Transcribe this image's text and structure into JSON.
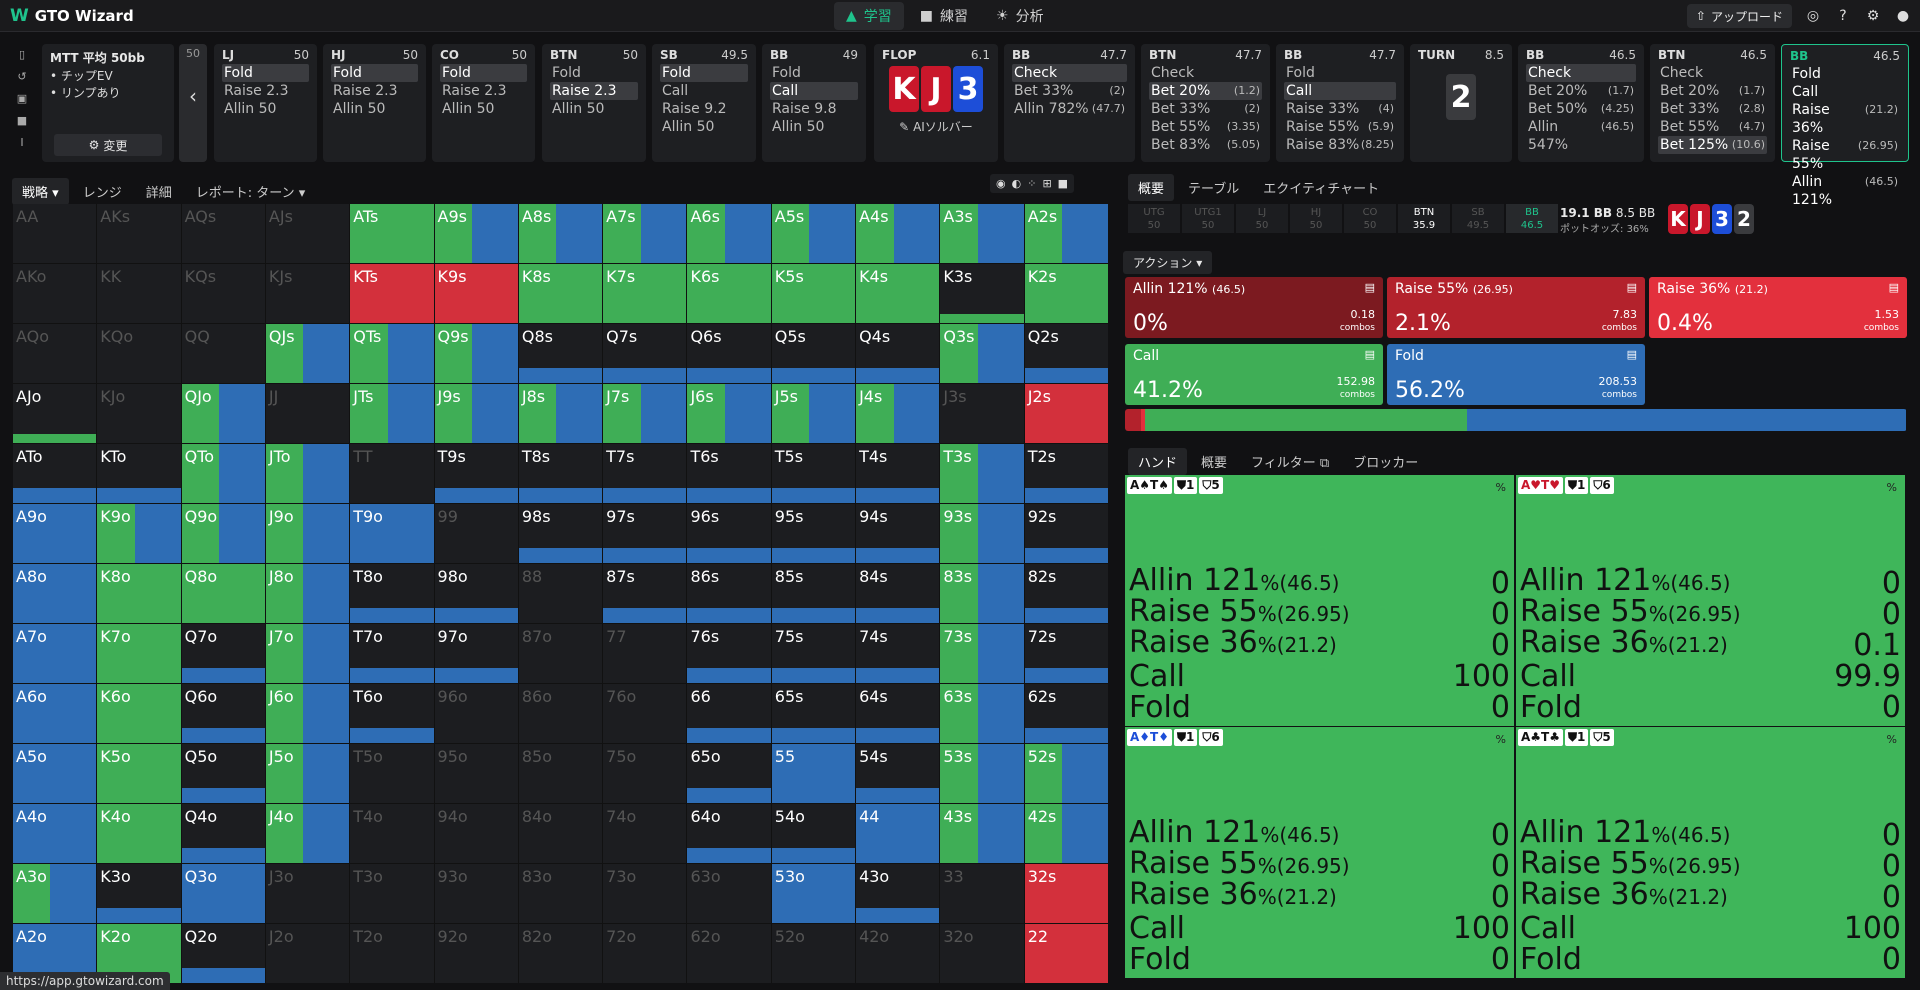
{
  "app": {
    "logo": "GTO Wizard",
    "nav": [
      "学習",
      "練習",
      "分析"
    ],
    "upgrade": "アップロード",
    "status_url": "https://app.gtowizard.com"
  },
  "tournament": {
    "title": "MTT 平均 50bb",
    "lines": [
      "• チップEV",
      "• リンプあり"
    ],
    "change": "変更",
    "back_stack": "50"
  },
  "nodes": [
    {
      "pos": "LJ",
      "stack": "50",
      "actions": [
        [
          "Fold",
          "",
          "sel"
        ],
        [
          "Raise 2.3",
          "",
          ""
        ],
        [
          "Allin 50",
          "",
          ""
        ]
      ]
    },
    {
      "pos": "HJ",
      "stack": "50",
      "actions": [
        [
          "Fold",
          "",
          "sel"
        ],
        [
          "Raise 2.3",
          "",
          ""
        ],
        [
          "Allin 50",
          "",
          ""
        ]
      ]
    },
    {
      "pos": "CO",
      "stack": "50",
      "actions": [
        [
          "Fold",
          "",
          "sel"
        ],
        [
          "Raise 2.3",
          "",
          ""
        ],
        [
          "Allin 50",
          "",
          ""
        ]
      ]
    },
    {
      "pos": "BTN",
      "stack": "50",
      "actions": [
        [
          "Fold",
          "",
          ""
        ],
        [
          "Raise 2.3",
          "",
          "sel"
        ],
        [
          "Allin 50",
          "",
          ""
        ]
      ]
    },
    {
      "pos": "SB",
      "stack": "49.5",
      "actions": [
        [
          "Fold",
          "",
          "sel"
        ],
        [
          "Call",
          "",
          ""
        ],
        [
          "Raise 9.2",
          "",
          ""
        ],
        [
          "Allin 50",
          "",
          ""
        ]
      ]
    },
    {
      "pos": "BB",
      "stack": "49",
      "actions": [
        [
          "Fold",
          "",
          ""
        ],
        [
          "Call",
          "",
          "sel"
        ],
        [
          "Raise 9.8",
          "",
          ""
        ],
        [
          "Allin 50",
          "",
          ""
        ]
      ]
    },
    {
      "pos": "BB",
      "stack": "47.7",
      "actions": [
        [
          "Check",
          "",
          "sel"
        ],
        [
          "Bet 33%",
          "(2)",
          ""
        ],
        [
          "Allin 782%",
          "(47.7)",
          ""
        ]
      ]
    },
    {
      "pos": "BTN",
      "stack": "47.7",
      "actions": [
        [
          "Check",
          "",
          ""
        ],
        [
          "Bet 20%",
          "(1.2)",
          "sel"
        ],
        [
          "Bet 33%",
          "(2)",
          ""
        ],
        [
          "Bet 55%",
          "(3.35)",
          ""
        ],
        [
          "Bet 83%",
          "(5.05)",
          ""
        ]
      ]
    },
    {
      "pos": "BB",
      "stack": "47.7",
      "actions": [
        [
          "Fold",
          "",
          ""
        ],
        [
          "Call",
          "",
          "sel"
        ],
        [
          "Raise 33%",
          "(4)",
          ""
        ],
        [
          "Raise 55%",
          "(5.9)",
          ""
        ],
        [
          "Raise 83%",
          "(8.25)",
          ""
        ]
      ]
    },
    {
      "pos": "BB",
      "stack": "46.5",
      "actions": [
        [
          "Check",
          "",
          "sel"
        ],
        [
          "Bet 20%",
          "(1.7)",
          ""
        ],
        [
          "Bet 50%",
          "(4.25)",
          ""
        ],
        [
          "Allin 547%",
          "(46.5)",
          ""
        ]
      ]
    },
    {
      "pos": "BTN",
      "stack": "46.5",
      "actions": [
        [
          "Check",
          "",
          ""
        ],
        [
          "Bet 20%",
          "(1.7)",
          ""
        ],
        [
          "Bet 33%",
          "(2.8)",
          ""
        ],
        [
          "Bet 55%",
          "(4.7)",
          ""
        ],
        [
          "Bet 125%",
          "(10.6)",
          "sel"
        ]
      ]
    },
    {
      "pos": "BB",
      "stack": "46.5",
      "actions": [
        [
          "Fold",
          "",
          "b"
        ],
        [
          "Call",
          "",
          "b"
        ],
        [
          "Raise 36%",
          "(21.2)",
          "b"
        ],
        [
          "Raise 55%",
          "(26.95)",
          "b"
        ],
        [
          "Allin 121%",
          "(46.5)",
          "b"
        ]
      ]
    }
  ],
  "flop": {
    "label": "FLOP",
    "pot": "6.1",
    "cards": [
      "K",
      "J",
      "3"
    ],
    "ai": "AIソルバー"
  },
  "turn": {
    "label": "TURN",
    "pot": "8.5",
    "card": "2"
  },
  "left_tabs": [
    "戦略",
    "レンジ",
    "詳細",
    "レポート: ターン"
  ],
  "right_tabs": [
    "概要",
    "テーブル",
    "エクイティチャート"
  ],
  "positions": [
    [
      "UTG",
      "50"
    ],
    [
      "UTG1",
      "50"
    ],
    [
      "LJ",
      "50"
    ],
    [
      "HJ",
      "50"
    ],
    [
      "CO",
      "50"
    ],
    [
      "BTN",
      "35.9"
    ],
    [
      "SB",
      "49.5"
    ],
    [
      "BB",
      "46.5"
    ]
  ],
  "pot_info": {
    "pot": "19.1 BB",
    "bet": "8.5 BB",
    "odds_label": "ポットオッズ:",
    "odds": "36%",
    "board": [
      "K",
      "J",
      "3",
      "2"
    ]
  },
  "action_label": "アクション",
  "actions": [
    {
      "name": "Allin 121%",
      "size": "(46.5)",
      "pct": "0%",
      "combos": "0.18",
      "color": "#7c1a20"
    },
    {
      "name": "Raise 55%",
      "size": "(26.95)",
      "pct": "2.1%",
      "combos": "7.83",
      "color": "#b3222c"
    },
    {
      "name": "Raise 36%",
      "size": "(21.2)",
      "pct": "0.4%",
      "combos": "1.53",
      "color": "#e3303d"
    },
    {
      "name": "Call",
      "size": "",
      "pct": "41.2%",
      "combos": "152.98",
      "color": "#3fae56"
    },
    {
      "name": "Fold",
      "size": "",
      "pct": "56.2%",
      "combos": "208.53",
      "color": "#2e6db5"
    }
  ],
  "combos_label": "combos",
  "hand_tabs": [
    "ハンド",
    "概要",
    "フィルター",
    "ブロッカー"
  ],
  "hands": [
    {
      "hand": "A♠T♠",
      "badge1": "1",
      "badge2": "5",
      "vals": [
        "0",
        "0",
        "0",
        "100",
        "0"
      ]
    },
    {
      "hand": "A♥T♥",
      "badge1": "1",
      "badge2": "6",
      "vals": [
        "0",
        "0",
        "0.1",
        "99.9",
        "0"
      ]
    },
    {
      "hand": "A♦T♦",
      "badge1": "1",
      "badge2": "6",
      "vals": [
        "0",
        "0",
        "0",
        "100",
        "0"
      ]
    },
    {
      "hand": "A♣T♣",
      "badge1": "1",
      "badge2": "5",
      "vals": [
        "0",
        "0",
        "0",
        "100",
        "0"
      ]
    }
  ],
  "hand_rows": [
    [
      "Allin 121",
      "(46.5)"
    ],
    [
      "Raise 55",
      "(26.95)"
    ],
    [
      "Raise 36",
      "(21.2)"
    ],
    [
      "Call",
      ""
    ],
    [
      "Fold",
      ""
    ]
  ],
  "grid": [
    [
      "AA:d",
      "AKs:d",
      "AQs:d",
      "AJs:d",
      "ATs:c",
      "A9s:m",
      "A8s:m",
      "A7s:m",
      "A6s:m",
      "A5s:m",
      "A4s:m",
      "A3s:m",
      "A2s:m"
    ],
    [
      "AKo:d",
      "KK:d",
      "KQs:d",
      "KJs:d",
      "KTs:r",
      "K9s:r",
      "K8s:c",
      "K7s:c",
      "K6s:c",
      "K5s:c",
      "K4s:c",
      "K3s:cs",
      "K2s:c"
    ],
    [
      "AQo:d",
      "KQo:d",
      "QQ:d",
      "QJs:m",
      "QTs:m",
      "Q9s:m",
      "Q8s:s",
      "Q7s:s",
      "Q6s:s",
      "Q5s:s",
      "Q4s:s",
      "Q3s:m",
      "Q2s:s"
    ],
    [
      "AJo:cs",
      "KJo:d",
      "QJo:m",
      "JJ:d",
      "JTs:m",
      "J9s:m",
      "J8s:m",
      "J7s:m",
      "J6s:m",
      "J5s:m",
      "J4s:m",
      "J3s:d",
      "J2s:r"
    ],
    [
      "ATo:s",
      "KTo:s",
      "QTo:m",
      "JTo:m",
      "TT:d",
      "T9s:s",
      "T8s:s",
      "T7s:s",
      "T6s:s",
      "T5s:s",
      "T4s:s",
      "T3s:m",
      "T2s:s"
    ],
    [
      "A9o:f",
      "K9o:m",
      "Q9o:m",
      "J9o:m",
      "T9o:f",
      "99:d",
      "98s:s",
      "97s:s",
      "96s:s",
      "95s:s",
      "94s:s",
      "93s:m",
      "92s:s"
    ],
    [
      "A8o:f",
      "K8o:c",
      "Q8o:c",
      "J8o:m",
      "T8o:s",
      "98o:s",
      "88:d",
      "87s:s",
      "86s:s",
      "85s:s",
      "84s:s",
      "83s:m",
      "82s:s"
    ],
    [
      "A7o:f",
      "K7o:c",
      "Q7o:s",
      "J7o:m",
      "T7o:s",
      "97o:s",
      "87o:d",
      "77:d",
      "76s:s",
      "75s:s",
      "74s:s",
      "73s:m",
      "72s:s"
    ],
    [
      "A6o:f",
      "K6o:c",
      "Q6o:s",
      "J6o:m",
      "T6o:s",
      "96o:d",
      "86o:d",
      "76o:d",
      "66:s",
      "65s:s",
      "64s:s",
      "63s:m",
      "62s:s"
    ],
    [
      "A5o:f",
      "K5o:c",
      "Q5o:s",
      "J5o:m",
      "T5o:d",
      "95o:d",
      "85o:d",
      "75o:d",
      "65o:s",
      "55:f",
      "54s:s",
      "53s:m",
      "52s:m"
    ],
    [
      "A4o:f",
      "K4o:c",
      "Q4o:s",
      "J4o:m",
      "T4o:d",
      "94o:d",
      "84o:d",
      "74o:d",
      "64o:s",
      "54o:s",
      "44:f",
      "43s:m",
      "42s:m"
    ],
    [
      "A3o:m",
      "K3o:s",
      "Q3o:f",
      "J3o:d",
      "T3o:d",
      "93o:d",
      "83o:d",
      "73o:d",
      "63o:d",
      "53o:f",
      "43o:s",
      "33:d",
      "32s:r"
    ],
    [
      "A2o:f",
      "K2o:c",
      "Q2o:s",
      "J2o:d",
      "T2o:d",
      "92o:d",
      "82o:d",
      "72o:d",
      "62o:d",
      "52o:d",
      "42o:d",
      "32o:d",
      "22:r"
    ]
  ]
}
